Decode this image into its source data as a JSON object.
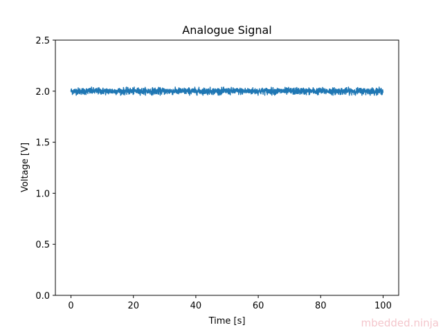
{
  "chart_data": {
    "type": "line",
    "title": "Analogue Signal",
    "xlabel": "Time [s]",
    "ylabel": "Voltage [V]",
    "xlim": [
      -5,
      105
    ],
    "ylim": [
      0,
      2.5
    ],
    "xticks": [
      0,
      20,
      40,
      60,
      80,
      100
    ],
    "xtick_labels": [
      "0",
      "20",
      "40",
      "60",
      "80",
      "100"
    ],
    "yticks": [
      0.0,
      0.5,
      1.0,
      1.5,
      2.0,
      2.5
    ],
    "ytick_labels": [
      "0.0",
      "0.5",
      "1.0",
      "1.5",
      "2.0",
      "2.5"
    ],
    "grid": false,
    "series": [
      {
        "color": "#1f77b4",
        "x_range": [
          0,
          100
        ],
        "mean": 2.0,
        "min": 1.96,
        "max": 2.04
      }
    ]
  },
  "watermark": "mbedded.ninja"
}
